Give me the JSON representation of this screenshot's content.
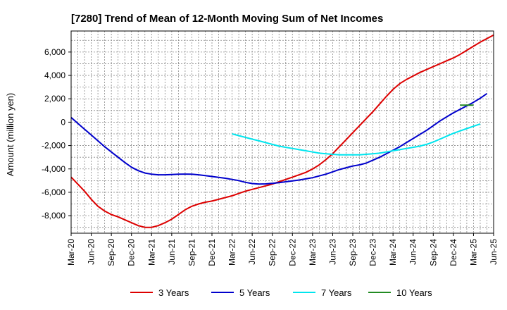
{
  "chart_data": {
    "type": "line",
    "title": "[7280]  Trend of Mean of 12-Month Moving Sum of Net Incomes",
    "xlabel": "",
    "ylabel": "Amount (million yen)",
    "x_ticks": [
      "Mar-20",
      "Jun-20",
      "Sep-20",
      "Dec-20",
      "Mar-21",
      "Jun-21",
      "Sep-21",
      "Dec-21",
      "Mar-22",
      "Jun-22",
      "Sep-22",
      "Dec-22",
      "Mar-23",
      "Jun-23",
      "Sep-23",
      "Dec-23",
      "Mar-24",
      "Jun-24",
      "Sep-24",
      "Dec-24",
      "Mar-25",
      "Jun-25"
    ],
    "y_ticks": [
      6000,
      4000,
      2000,
      0,
      -2000,
      -4000,
      -6000,
      -8000
    ],
    "y_tick_labels": [
      "6,000",
      "4,000",
      "2,000",
      "0",
      "-2,000",
      "-4,000",
      "-6,000",
      "-8,000"
    ],
    "ylim": [
      -9500,
      7800
    ],
    "grid": true,
    "legend_position": "bottom",
    "series": [
      {
        "name": "3 Years",
        "color": "#dd0000",
        "start": "Mar-20",
        "values": [
          -4700,
          -5300,
          -5900,
          -6600,
          -7200,
          -7600,
          -7900,
          -8100,
          -8350,
          -8600,
          -8850,
          -9000,
          -9000,
          -8850,
          -8600,
          -8300,
          -7900,
          -7500,
          -7200,
          -7000,
          -6850,
          -6750,
          -6600,
          -6450,
          -6300,
          -6100,
          -5900,
          -5750,
          -5600,
          -5450,
          -5300,
          -5100,
          -4900,
          -4700,
          -4500,
          -4300,
          -4000,
          -3650,
          -3200,
          -2700,
          -2100,
          -1500,
          -900,
          -300,
          300,
          900,
          1550,
          2200,
          2800,
          3300,
          3650,
          3950,
          4250,
          4500,
          4750,
          5000,
          5250,
          5500,
          5800,
          6150,
          6500,
          6850,
          7150,
          7450
        ]
      },
      {
        "name": "5 Years",
        "color": "#0000cc",
        "start": "Mar-20",
        "values": [
          400,
          -100,
          -600,
          -1100,
          -1600,
          -2100,
          -2550,
          -3000,
          -3450,
          -3850,
          -4150,
          -4350,
          -4450,
          -4500,
          -4500,
          -4480,
          -4450,
          -4440,
          -4450,
          -4500,
          -4570,
          -4650,
          -4720,
          -4800,
          -4900,
          -5000,
          -5150,
          -5250,
          -5300,
          -5280,
          -5230,
          -5180,
          -5100,
          -5030,
          -4950,
          -4850,
          -4750,
          -4600,
          -4450,
          -4250,
          -4050,
          -3900,
          -3750,
          -3650,
          -3500,
          -3250,
          -3000,
          -2700,
          -2400,
          -2100,
          -1750,
          -1400,
          -1050,
          -700,
          -300,
          100,
          450,
          800,
          1100,
          1400,
          1700,
          2050,
          2450
        ]
      },
      {
        "name": "7 Years",
        "color": "#00e5ee",
        "start": "Mar-22",
        "values": [
          -1000,
          -1150,
          -1300,
          -1450,
          -1600,
          -1750,
          -1900,
          -2050,
          -2150,
          -2250,
          -2350,
          -2450,
          -2550,
          -2650,
          -2700,
          -2750,
          -2800,
          -2800,
          -2800,
          -2800,
          -2750,
          -2700,
          -2650,
          -2550,
          -2450,
          -2350,
          -2250,
          -2150,
          -2050,
          -1900,
          -1700,
          -1450,
          -1200,
          -950,
          -750,
          -550,
          -350,
          -150
        ]
      },
      {
        "name": "10 Years",
        "color": "#228b22",
        "start": "Jan-25",
        "values": [
          1450,
          1450,
          1450
        ]
      }
    ]
  }
}
